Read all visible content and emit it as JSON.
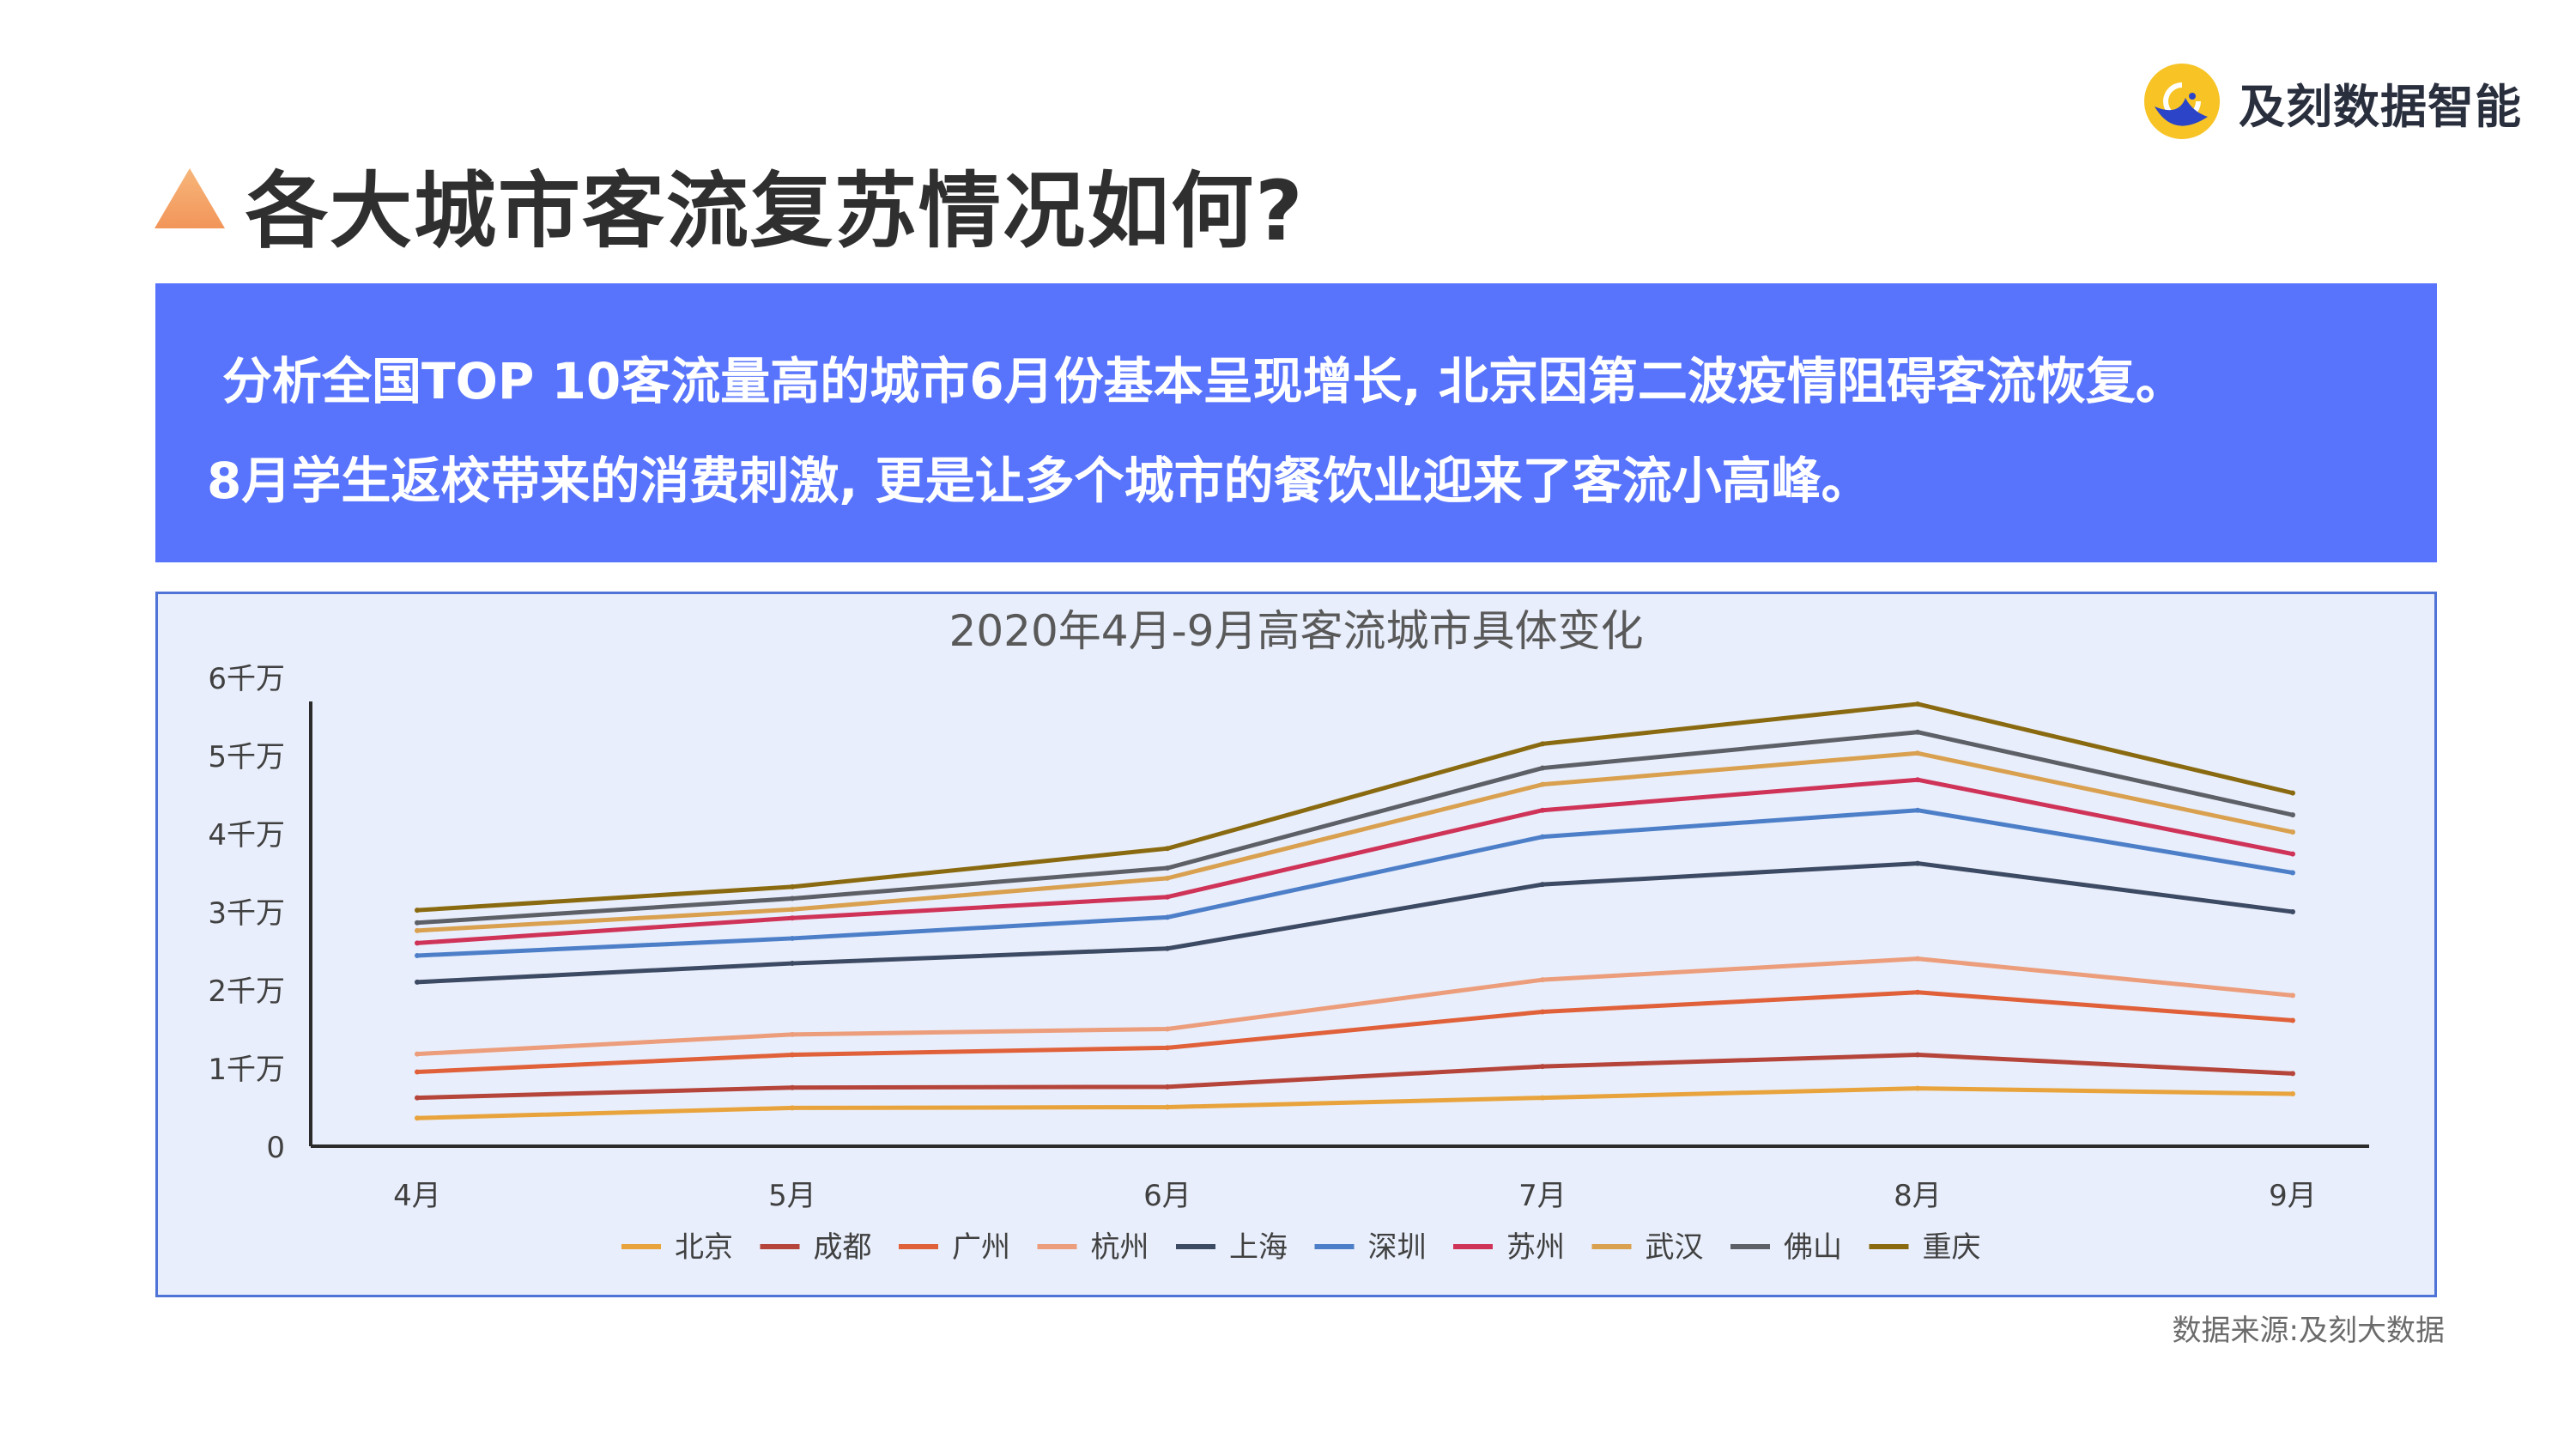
{
  "brand": {
    "name": "及刻数据智能",
    "icon": "bird-logo-icon"
  },
  "page_title": "各大城市客流复苏情况如何?",
  "summary": {
    "line1": "分析全国TOP 10客流量高的城市6月份基本呈现增长, 北京因第二波疫情阻碍客流恢复。",
    "line2": "8月学生返校带来的消费刺激, 更是让多个城市的餐饮业迎来了客流小高峰。"
  },
  "source_note": "数据来源:及刻大数据",
  "colors": {
    "accent_blue": "#5874fc",
    "title_triangle": "#f4a264",
    "chart_bg": "#e8eefb"
  },
  "chart_data": {
    "type": "line",
    "title": "2020年4月-9月高客流城市具体变化",
    "xlabel": "",
    "ylabel": "",
    "categories": [
      "4月",
      "5月",
      "6月",
      "7月",
      "8月",
      "9月"
    ],
    "ylim": [
      0,
      6
    ],
    "yticks": [
      {
        "value": 0,
        "label": "0"
      },
      {
        "value": 1,
        "label": "1千万"
      },
      {
        "value": 2,
        "label": "2千万"
      },
      {
        "value": 3,
        "label": "3千万"
      },
      {
        "value": 4,
        "label": "4千万"
      },
      {
        "value": 5,
        "label": "5千万"
      },
      {
        "value": 6,
        "label": "6千万"
      }
    ],
    "grid": false,
    "legend_position": "bottom",
    "series": [
      {
        "name": "北京",
        "color": "#e8a33c",
        "values": [
          0.36,
          0.49,
          0.5,
          0.62,
          0.74,
          0.67
        ]
      },
      {
        "name": "成都",
        "color": "#b5443a",
        "values": [
          0.62,
          0.75,
          0.76,
          1.02,
          1.17,
          0.93
        ]
      },
      {
        "name": "广州",
        "color": "#e0603a",
        "values": [
          0.95,
          1.17,
          1.26,
          1.72,
          1.97,
          1.61
        ]
      },
      {
        "name": "杭州",
        "color": "#ec9d7b",
        "values": [
          1.18,
          1.43,
          1.5,
          2.13,
          2.4,
          1.93
        ]
      },
      {
        "name": "上海",
        "color": "#3d4a63",
        "values": [
          2.1,
          2.34,
          2.53,
          3.35,
          3.62,
          3.0
        ]
      },
      {
        "name": "深圳",
        "color": "#4d7fc9",
        "values": [
          2.44,
          2.66,
          2.93,
          3.96,
          4.3,
          3.5
        ]
      },
      {
        "name": "苏州",
        "color": "#cf3358",
        "values": [
          2.6,
          2.92,
          3.19,
          4.3,
          4.69,
          3.74
        ]
      },
      {
        "name": "武汉",
        "color": "#d9a04f",
        "values": [
          2.76,
          3.03,
          3.43,
          4.63,
          5.03,
          4.02
        ]
      },
      {
        "name": "佛山",
        "color": "#5e6067",
        "values": [
          2.86,
          3.17,
          3.56,
          4.84,
          5.3,
          4.24
        ]
      },
      {
        "name": "重庆",
        "color": "#8a6a10",
        "values": [
          3.02,
          3.32,
          3.81,
          5.15,
          5.66,
          4.52
        ]
      }
    ]
  }
}
